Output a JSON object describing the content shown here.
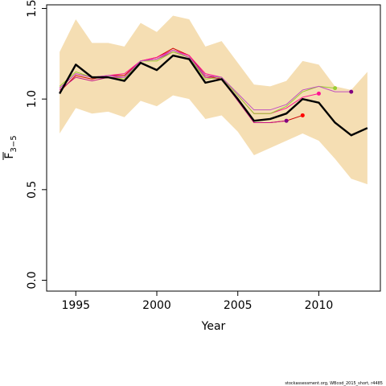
{
  "chart_data": {
    "type": "line",
    "xlabel": "Year",
    "ylabel_main": "F",
    "ylabel_sub": "3−5",
    "xlim": [
      1993.2,
      2013.8
    ],
    "ylim": [
      -0.06,
      1.52
    ],
    "x_ticks": [
      1995,
      2000,
      2005,
      2010
    ],
    "y_ticks": [
      0.0,
      0.5,
      1.0,
      1.5
    ],
    "y_tick_labels": [
      "0.0",
      "0.5",
      "1.0",
      "1.5"
    ],
    "band": {
      "color": "#f5deb3",
      "x": [
        1994,
        1995,
        1996,
        1997,
        1998,
        1999,
        2000,
        2001,
        2002,
        2003,
        2004,
        2005,
        2006,
        2007,
        2008,
        2009,
        2010,
        2011,
        2012,
        2013
      ],
      "lower": [
        0.81,
        0.95,
        0.92,
        0.93,
        0.9,
        0.99,
        0.96,
        1.02,
        1.0,
        0.89,
        0.91,
        0.82,
        0.69,
        0.73,
        0.77,
        0.81,
        0.77,
        0.67,
        0.56,
        0.53
      ],
      "upper": [
        1.26,
        1.44,
        1.31,
        1.31,
        1.29,
        1.42,
        1.37,
        1.46,
        1.44,
        1.29,
        1.32,
        1.2,
        1.08,
        1.07,
        1.1,
        1.21,
        1.19,
        1.07,
        1.05,
        1.15
      ]
    },
    "retro_series": [
      {
        "color": "#cc0000",
        "dot": "#ff0000",
        "x": [
          1994,
          1995,
          1996,
          1997,
          1998,
          1999,
          2000,
          2001,
          2002,
          2003,
          2004,
          2005,
          2006,
          2007,
          2008,
          2009
        ],
        "values": [
          1.04,
          1.13,
          1.11,
          1.13,
          1.13,
          1.21,
          1.23,
          1.28,
          1.24,
          1.13,
          1.11,
          1.0,
          0.87,
          0.87,
          0.88,
          0.91
        ]
      },
      {
        "color": "#c71585",
        "dot": "#800080",
        "x": [
          1994,
          1995,
          1996,
          1997,
          1998,
          1999,
          2000,
          2001,
          2002,
          2003,
          2004,
          2005,
          2006,
          2007,
          2008
        ],
        "values": [
          1.05,
          1.12,
          1.1,
          1.12,
          1.12,
          1.21,
          1.22,
          1.26,
          1.23,
          1.12,
          1.11,
          0.99,
          0.87,
          0.87,
          0.88
        ]
      },
      {
        "color": "#ff1493",
        "dot": "#ff1493",
        "x": [
          1994,
          1995,
          1996,
          1997,
          1998,
          1999,
          2000,
          2001,
          2002,
          2003,
          2004,
          2005,
          2006,
          2007,
          2008,
          2009,
          2010
        ],
        "values": [
          1.06,
          1.14,
          1.12,
          1.13,
          1.14,
          1.21,
          1.23,
          1.27,
          1.24,
          1.14,
          1.12,
          1.02,
          0.92,
          0.92,
          0.95,
          1.01,
          1.03
        ]
      },
      {
        "color": "#9acd32",
        "dot": "#9acd32",
        "x": [
          1994,
          1995,
          1996,
          1997,
          1998,
          1999,
          2000,
          2001,
          2002,
          2003,
          2004,
          2005,
          2006,
          2007,
          2008,
          2009,
          2010,
          2011
        ],
        "values": [
          1.07,
          1.15,
          1.12,
          1.12,
          1.11,
          1.21,
          1.21,
          1.26,
          1.23,
          1.11,
          1.12,
          1.02,
          0.92,
          0.92,
          0.96,
          1.04,
          1.07,
          1.06
        ]
      },
      {
        "color": "#c050c0",
        "dot": "#800080",
        "x": [
          1994,
          1995,
          1996,
          1997,
          1998,
          1999,
          2000,
          2001,
          2002,
          2003,
          2004,
          2005,
          2006,
          2007,
          2008,
          2009,
          2010,
          2011,
          2012
        ],
        "values": [
          1.06,
          1.14,
          1.12,
          1.13,
          1.12,
          1.21,
          1.22,
          1.27,
          1.23,
          1.13,
          1.12,
          1.03,
          0.94,
          0.94,
          0.97,
          1.05,
          1.07,
          1.04,
          1.04
        ]
      }
    ],
    "main_series": {
      "color": "#000000",
      "x": [
        1994,
        1995,
        1996,
        1997,
        1998,
        1999,
        2000,
        2001,
        2002,
        2003,
        2004,
        2005,
        2006,
        2007,
        2008,
        2009,
        2010,
        2011,
        2012,
        2013
      ],
      "values": [
        1.03,
        1.19,
        1.12,
        1.12,
        1.1,
        1.2,
        1.16,
        1.24,
        1.22,
        1.09,
        1.11,
        1.0,
        0.88,
        0.89,
        0.92,
        1.0,
        0.98,
        0.87,
        0.8,
        0.84
      ]
    }
  },
  "footer_text": "stockassessment.org, WBcod_2015_short, r4485"
}
